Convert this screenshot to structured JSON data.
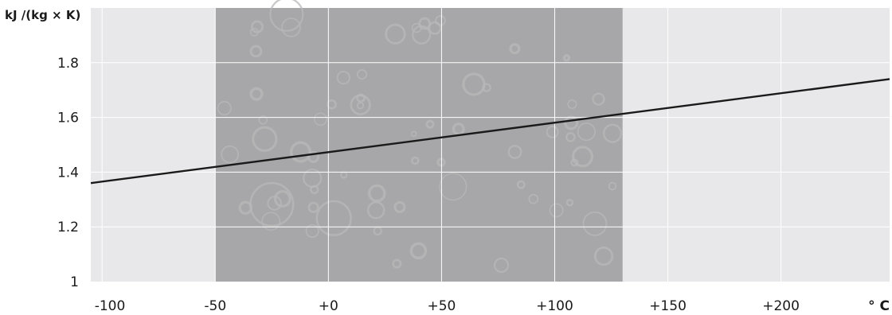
{
  "chart_data": {
    "type": "line",
    "ylabel": "kJ /(kg × K)",
    "xlabel": "° C",
    "xlim": [
      -105,
      248
    ],
    "ylim": [
      1,
      2
    ],
    "grid": true,
    "y_ticks": [
      {
        "value": 1,
        "label": "1"
      },
      {
        "value": 1.2,
        "label": "1.2"
      },
      {
        "value": 1.4,
        "label": "1.4"
      },
      {
        "value": 1.6,
        "label": "1.6"
      },
      {
        "value": 1.8,
        "label": "1.8"
      }
    ],
    "x_ticks": [
      {
        "value": -100,
        "label": "-100"
      },
      {
        "value": -50,
        "label": "-50"
      },
      {
        "value": 0,
        "label": "+0"
      },
      {
        "value": 50,
        "label": "+50"
      },
      {
        "value": 100,
        "label": "+100"
      },
      {
        "value": 150,
        "label": "+150"
      },
      {
        "value": 200,
        "label": "+200"
      }
    ],
    "highlight_range": [
      -50,
      130
    ],
    "series": [
      {
        "x": [
          -105,
          248
        ],
        "y": [
          1.36,
          1.74
        ]
      }
    ],
    "colors": {
      "plot_background": "#e8e8ea",
      "highlight_band": "#a7a7a9",
      "grid": "#ffffff",
      "line": "#1a1a1a"
    }
  }
}
